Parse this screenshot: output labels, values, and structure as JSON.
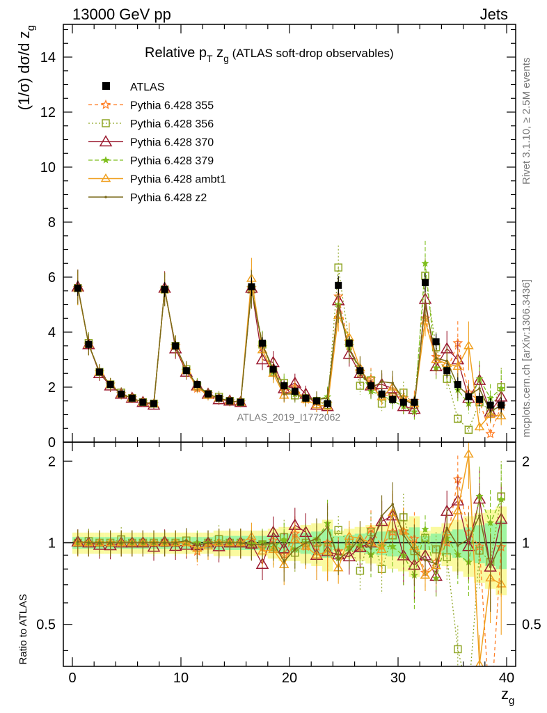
{
  "header": {
    "left": "13000 GeV pp",
    "right": "Jets"
  },
  "plot_title": {
    "main": "Relative p",
    "main_sub": "T",
    "var": " z",
    "var_sub": "g",
    "suffix": " (ATLAS soft-drop observables)"
  },
  "side_labels": {
    "rivet": "Rivet 3.1.10, ≥ 2.5M events",
    "mcplots": "mcplots.cern.ch [arXiv:1306.3436]"
  },
  "watermark": "ATLAS_2019_I1772062",
  "y_axis_top": {
    "label": "(1/σ) dσ/d z",
    "label_sub": "g"
  },
  "y_axis_bottom": {
    "label": "Ratio to ATLAS"
  },
  "x_axis": {
    "label": "z",
    "label_sub": "g"
  },
  "colors": {
    "ATLAS": "#000000",
    "p355": "#ff7f27",
    "p356": "#8fa626",
    "p370": "#9b1b30",
    "p379": "#7fbf1f",
    "ambt1": "#f0a020",
    "z2": "#7a6a1a",
    "band_inner": "#a0f5a0",
    "band_outer": "#fafaa0"
  },
  "chart_data": {
    "type": "line",
    "x_range": [
      -1,
      41
    ],
    "top_panel": {
      "ylim": [
        0,
        15.2
      ],
      "yticks": [
        0,
        2,
        4,
        6,
        8,
        10,
        12,
        14
      ],
      "ytick_labels": [
        "0",
        "2",
        "4",
        "6",
        "8",
        "10",
        "12",
        "14"
      ]
    },
    "ratio_panel": {
      "ylim": [
        0.35,
        2.35
      ],
      "yticks": [
        0.5,
        1,
        2
      ],
      "ytick_labels": [
        "0.5",
        "1",
        "2"
      ],
      "log": true
    },
    "xticks": [
      0,
      10,
      20,
      30,
      40
    ],
    "xtick_labels": [
      "0",
      "10",
      "20",
      "30",
      "40"
    ],
    "x": [
      0.5,
      1.5,
      2.5,
      3.5,
      4.5,
      5.5,
      6.5,
      7.5,
      8.5,
      9.5,
      10.5,
      11.5,
      12.5,
      13.5,
      14.5,
      15.5,
      16.5,
      17.5,
      18.5,
      19.5,
      20.5,
      21.5,
      22.5,
      23.5,
      24.5,
      25.5,
      26.5,
      27.5,
      28.5,
      29.5,
      30.5,
      31.5,
      32.5,
      33.5,
      34.5,
      35.5,
      36.5,
      37.5,
      38.5,
      39.5
    ],
    "data": {
      "name": "ATLAS",
      "values": [
        5.6,
        3.55,
        2.55,
        2.1,
        1.75,
        1.6,
        1.45,
        1.4,
        5.55,
        3.5,
        2.6,
        2.1,
        1.75,
        1.6,
        1.5,
        1.45,
        5.65,
        3.6,
        2.65,
        2.05,
        1.85,
        1.6,
        1.5,
        1.4,
        5.7,
        3.6,
        2.6,
        2.05,
        1.75,
        1.55,
        1.45,
        1.45,
        5.8,
        3.65,
        2.6,
        2.1,
        1.65,
        1.55,
        1.35,
        1.35
      ]
    },
    "series": [
      {
        "key": "p355",
        "name": "Pythia 6.428 355",
        "values": [
          5.6,
          3.55,
          2.55,
          2.1,
          1.75,
          1.6,
          1.45,
          1.4,
          5.55,
          3.5,
          2.6,
          1.95,
          1.75,
          1.6,
          1.5,
          1.45,
          5.6,
          3.45,
          2.7,
          1.85,
          2.0,
          1.55,
          1.45,
          1.4,
          5.3,
          3.5,
          2.5,
          2.3,
          1.7,
          1.7,
          1.6,
          1.5,
          4.5,
          3.1,
          2.6,
          3.6,
          1.8,
          1.5,
          0.3,
          1.3
        ]
      },
      {
        "key": "p356",
        "name": "Pythia 6.428 356",
        "values": [
          5.6,
          3.6,
          2.55,
          2.1,
          1.8,
          1.6,
          1.45,
          1.4,
          5.55,
          3.5,
          2.65,
          2.05,
          1.75,
          1.65,
          1.5,
          1.45,
          5.55,
          3.55,
          2.55,
          2.15,
          1.7,
          1.6,
          1.5,
          1.35,
          6.35,
          3.6,
          2.05,
          2.25,
          1.4,
          1.65,
          1.8,
          1.35,
          6.05,
          3.45,
          2.3,
          0.85,
          0.45,
          1.45,
          1.15,
          2.0
        ]
      },
      {
        "key": "p370",
        "name": "Pythia 6.428 370",
        "values": [
          5.65,
          3.55,
          2.5,
          2.05,
          1.75,
          1.6,
          1.45,
          1.35,
          5.6,
          3.4,
          2.55,
          2.05,
          1.75,
          1.55,
          1.5,
          1.45,
          5.6,
          3.0,
          2.9,
          1.95,
          2.15,
          1.75,
          1.35,
          1.3,
          5.15,
          3.2,
          2.5,
          2.05,
          2.1,
          1.95,
          1.3,
          1.2,
          5.2,
          2.75,
          3.4,
          3.0,
          1.6,
          2.25,
          1.1,
          1.65
        ]
      },
      {
        "key": "p379",
        "name": "Pythia 6.428 379",
        "values": [
          5.6,
          3.55,
          2.55,
          2.1,
          1.75,
          1.6,
          1.45,
          1.4,
          5.55,
          3.5,
          2.6,
          2.1,
          1.75,
          1.6,
          1.5,
          1.45,
          5.6,
          3.6,
          2.55,
          2.1,
          1.75,
          1.6,
          1.55,
          1.65,
          5.0,
          3.45,
          2.55,
          1.85,
          1.7,
          1.5,
          1.3,
          1.1,
          6.5,
          2.7,
          2.7,
          1.9,
          1.4,
          2.3,
          1.6,
          1.95
        ]
      },
      {
        "key": "ambt1",
        "name": "Pythia 6.428 ambt1",
        "values": [
          5.6,
          3.55,
          2.55,
          2.1,
          1.75,
          1.6,
          1.45,
          1.4,
          5.55,
          3.5,
          2.6,
          2.0,
          1.7,
          1.6,
          1.5,
          1.45,
          5.95,
          3.35,
          2.5,
          1.7,
          1.9,
          1.55,
          1.35,
          1.3,
          4.6,
          3.8,
          2.7,
          2.05,
          1.65,
          2.0,
          1.6,
          1.4,
          4.4,
          3.0,
          2.85,
          2.75,
          3.5,
          0.55,
          1.0,
          0.95
        ]
      },
      {
        "key": "z2",
        "name": "Pythia 6.428 z2",
        "values": [
          5.65,
          3.55,
          2.55,
          2.1,
          1.75,
          1.6,
          1.45,
          1.4,
          5.55,
          3.5,
          2.65,
          2.05,
          1.75,
          1.6,
          1.5,
          1.45,
          5.55,
          3.55,
          2.65,
          1.75,
          1.75,
          1.6,
          1.55,
          1.6,
          4.95,
          3.35,
          2.7,
          1.95,
          2.2,
          2.15,
          1.55,
          1.35,
          5.0,
          3.05,
          2.95,
          2.05,
          1.7,
          1.95,
          1.1,
          1.35
        ]
      }
    ],
    "legend": [
      "ATLAS",
      "Pythia 6.428 355",
      "Pythia 6.428 356",
      "Pythia 6.428 370",
      "Pythia 6.428 379",
      "Pythia 6.428 ambt1",
      "Pythia 6.428 z2"
    ],
    "legend_position": "top-left",
    "error_band_rel": [
      0.05,
      0.05,
      0.05,
      0.05,
      0.05,
      0.05,
      0.05,
      0.05,
      0.05,
      0.05,
      0.05,
      0.05,
      0.05,
      0.06,
      0.06,
      0.06,
      0.06,
      0.06,
      0.07,
      0.08,
      0.08,
      0.09,
      0.1,
      0.12,
      0.06,
      0.07,
      0.08,
      0.09,
      0.1,
      0.11,
      0.12,
      0.14,
      0.06,
      0.08,
      0.1,
      0.12,
      0.14,
      0.16,
      0.18,
      0.2
    ]
  }
}
